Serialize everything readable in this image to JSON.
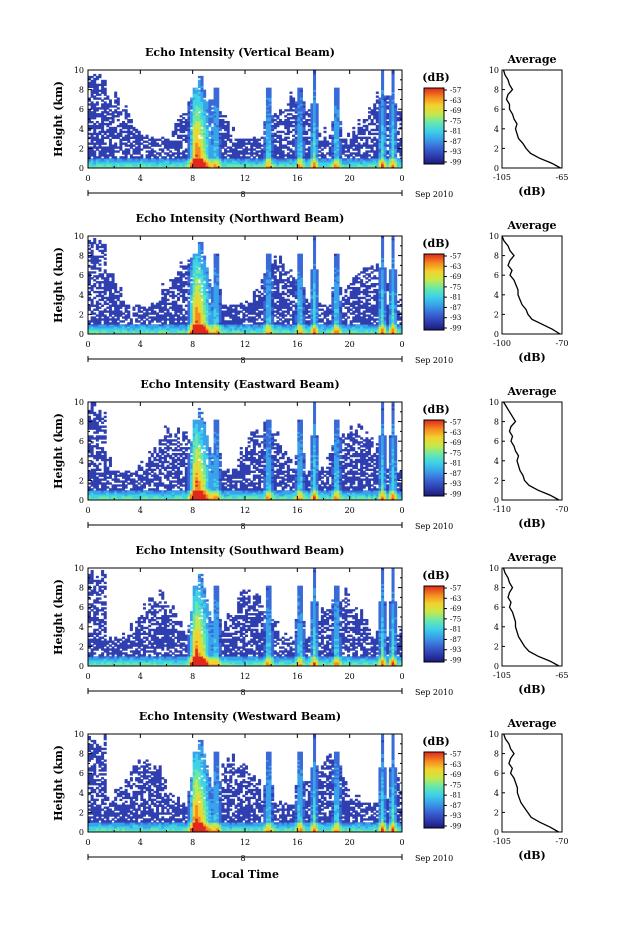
{
  "colors": {
    "background": "#ffffff",
    "colormap": [
      "#1a1a7a",
      "#2f3fb0",
      "#3a6ad8",
      "#39a3ea",
      "#3fd2e6",
      "#6ae8a8",
      "#c8e84a",
      "#f2d22e",
      "#f58a1f",
      "#e0281c"
    ]
  },
  "shared": {
    "ylabel": "Height (km)",
    "xlabel": "Local Time",
    "day_label": "8",
    "date_label": "Sep 2010",
    "cbar_unit": "(dB)",
    "avg_title": "Average",
    "avg_xlabel": "(dB)",
    "x_ticks": [
      "0",
      "4",
      "8",
      "12",
      "16",
      "20",
      "0"
    ],
    "y_ticks": [
      "0",
      "2",
      "4",
      "6",
      "8",
      "10"
    ],
    "cbar_ticks": [
      "-57",
      "-63",
      "-69",
      "-75",
      "-81",
      "-87",
      "-93",
      "-99"
    ]
  },
  "chart_data": [
    {
      "type": "heatmap",
      "title": "Echo Intensity (Vertical Beam)",
      "xlabel": "",
      "ylabel": "Height (km)",
      "xlim": [
        0,
        24
      ],
      "ylim": [
        0,
        10
      ],
      "clim": [
        -99,
        -57
      ],
      "avg": {
        "type": "line",
        "title": "Average",
        "xlabel": "(dB)",
        "xlim": [
          -105,
          -65
        ],
        "x_tick_labels": [
          "-105",
          "-65"
        ],
        "ylim": [
          0,
          10
        ],
        "height": [
          0,
          0.5,
          1,
          1.5,
          2,
          2.5,
          3,
          3.5,
          4,
          4.5,
          5,
          5.5,
          6,
          6.5,
          7,
          7.5,
          8,
          8.5,
          9,
          9.5,
          10
        ],
        "values": [
          -66,
          -72,
          -80,
          -86,
          -89,
          -91,
          -94,
          -95,
          -96,
          -95,
          -97,
          -98,
          -100,
          -100,
          -102,
          -101,
          -98,
          -100,
          -101,
          -103,
          -104
        ]
      }
    },
    {
      "type": "heatmap",
      "title": "Echo Intensity (Northward Beam)",
      "xlabel": "",
      "ylabel": "Height (km)",
      "xlim": [
        0,
        24
      ],
      "ylim": [
        0,
        10
      ],
      "clim": [
        -99,
        -57
      ],
      "avg": {
        "type": "line",
        "title": "Average",
        "xlabel": "(dB)",
        "xlim": [
          -100,
          -70
        ],
        "x_tick_labels": [
          "-100",
          "-70"
        ],
        "ylim": [
          0,
          10
        ],
        "height": [
          0,
          0.5,
          1,
          1.5,
          2,
          2.5,
          3,
          3.5,
          4,
          4.5,
          5,
          5.5,
          6,
          6.5,
          7,
          7.5,
          8,
          8.5,
          9,
          9.5,
          10
        ],
        "values": [
          -71,
          -75,
          -80,
          -85,
          -87,
          -88,
          -90,
          -91,
          -92,
          -92,
          -93,
          -94,
          -96,
          -95,
          -97,
          -96,
          -94,
          -96,
          -97,
          -99,
          -100
        ]
      }
    },
    {
      "type": "heatmap",
      "title": "Echo Intensity (Eastward Beam)",
      "xlabel": "",
      "ylabel": "Height (km)",
      "xlim": [
        0,
        24
      ],
      "ylim": [
        0,
        10
      ],
      "clim": [
        -99,
        -57
      ],
      "avg": {
        "type": "line",
        "title": "Average",
        "xlabel": "(dB)",
        "xlim": [
          -110,
          -70
        ],
        "x_tick_labels": [
          "-110",
          "-70"
        ],
        "ylim": [
          0,
          10
        ],
        "height": [
          0,
          0.5,
          1,
          1.5,
          2,
          2.5,
          3,
          3.5,
          4,
          4.5,
          5,
          5.5,
          6,
          6.5,
          7,
          7.5,
          8,
          8.5,
          9,
          9.5,
          10
        ],
        "values": [
          -72,
          -78,
          -86,
          -92,
          -95,
          -96,
          -98,
          -99,
          -100,
          -99,
          -101,
          -102,
          -104,
          -103,
          -105,
          -104,
          -101,
          -103,
          -105,
          -107,
          -109
        ]
      }
    },
    {
      "type": "heatmap",
      "title": "Echo Intensity (Southward Beam)",
      "xlabel": "",
      "ylabel": "Height (km)",
      "xlim": [
        0,
        24
      ],
      "ylim": [
        0,
        10
      ],
      "clim": [
        -99,
        -57
      ],
      "avg": {
        "type": "line",
        "title": "Average",
        "xlabel": "(dB)",
        "xlim": [
          -105,
          -65
        ],
        "x_tick_labels": [
          "-105",
          "-65"
        ],
        "ylim": [
          0,
          10
        ],
        "height": [
          0,
          0.5,
          1,
          1.5,
          2,
          2.5,
          3,
          3.5,
          4,
          4.5,
          5,
          5.5,
          6,
          6.5,
          7,
          7.5,
          8,
          8.5,
          9,
          9.5,
          10
        ],
        "values": [
          -67,
          -73,
          -81,
          -87,
          -90,
          -92,
          -94,
          -95,
          -96,
          -96,
          -97,
          -98,
          -100,
          -99,
          -101,
          -100,
          -98,
          -100,
          -101,
          -103,
          -104
        ]
      }
    },
    {
      "type": "heatmap",
      "title": "Echo Intensity (Westward Beam)",
      "xlabel": "Local Time",
      "ylabel": "Height (km)",
      "xlim": [
        0,
        24
      ],
      "ylim": [
        0,
        10
      ],
      "clim": [
        -99,
        -57
      ],
      "avg": {
        "type": "line",
        "title": "Average",
        "xlabel": "(dB)",
        "xlim": [
          -105,
          -70
        ],
        "x_tick_labels": [
          "-105",
          "-70"
        ],
        "ylim": [
          0,
          10
        ],
        "height": [
          0,
          0.5,
          1,
          1.5,
          2,
          2.5,
          3,
          3.5,
          4,
          4.5,
          5,
          5.5,
          6,
          6.5,
          7,
          7.5,
          8,
          8.5,
          9,
          9.5,
          10
        ],
        "values": [
          -72,
          -77,
          -83,
          -88,
          -90,
          -92,
          -94,
          -95,
          -96,
          -96,
          -97,
          -98,
          -100,
          -99,
          -101,
          -100,
          -98,
          -100,
          -101,
          -103,
          -104
        ]
      }
    }
  ]
}
